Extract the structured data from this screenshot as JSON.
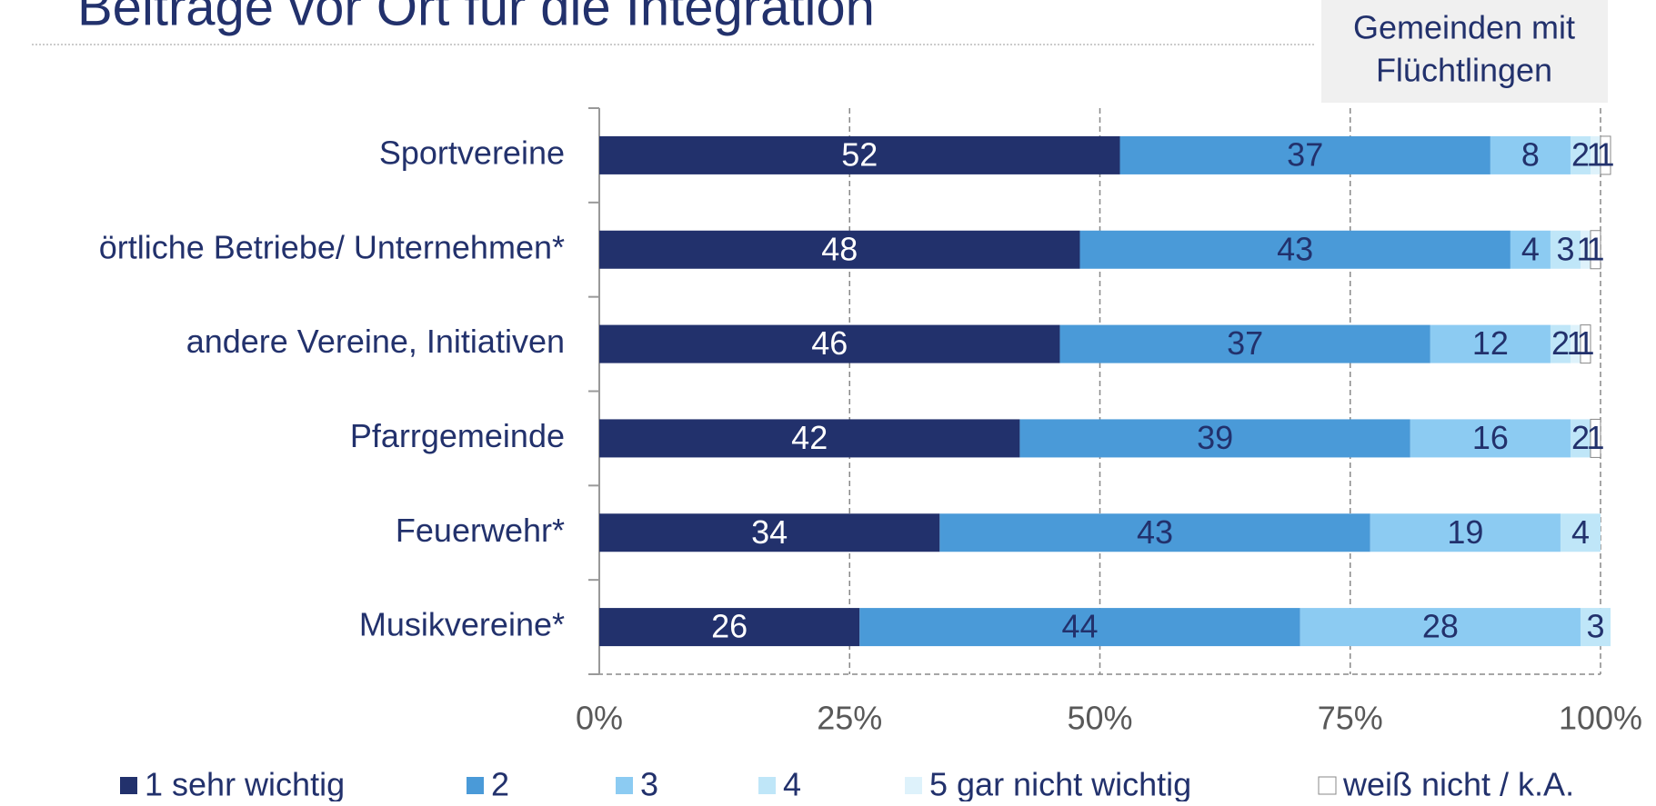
{
  "chart_data": {
    "type": "stacked-barh",
    "title": "Beiträge vor Ort für die Integration",
    "note": [
      "Gemeinden mit",
      "Flüchtlingen"
    ],
    "categories": [
      "Sportvereine",
      "örtliche Betriebe/ Unternehmen*",
      "andere Vereine, Initiativen",
      "Pfarrgemeinde",
      "Feuerwehr*",
      "Musikvereine*"
    ],
    "series": [
      {
        "name": "1 sehr wichtig",
        "color": "#22316c",
        "label_color": "#ffffff",
        "values": [
          52,
          48,
          46,
          42,
          34,
          26
        ]
      },
      {
        "name": "2",
        "color": "#4a9ad8",
        "label_color": "#22316c",
        "values": [
          37,
          43,
          37,
          39,
          43,
          44
        ]
      },
      {
        "name": "3",
        "color": "#8ccbf2",
        "label_color": "#22316c",
        "values": [
          8,
          4,
          12,
          16,
          19,
          28
        ]
      },
      {
        "name": "4",
        "color": "#bfe6f8",
        "label_color": "#22316c",
        "values": [
          2,
          3,
          2,
          2,
          4,
          3
        ]
      },
      {
        "name": "5 gar nicht wichtig",
        "color": "#def2fb",
        "label_color": "#22316c",
        "values": [
          1,
          1,
          1,
          null,
          null,
          null
        ]
      },
      {
        "name": "weiß nicht / k.A.",
        "color": "#ffffff",
        "label_color": "#22316c",
        "values": [
          1,
          1,
          1,
          1,
          null,
          null
        ]
      }
    ],
    "xlim": [
      0,
      100
    ],
    "xticks": [
      {
        "value": 0,
        "label": "0%"
      },
      {
        "value": 25,
        "label": "25%"
      },
      {
        "value": 50,
        "label": "50%"
      },
      {
        "value": 75,
        "label": "75%"
      },
      {
        "value": 100,
        "label": "100%"
      }
    ],
    "grid": true
  }
}
